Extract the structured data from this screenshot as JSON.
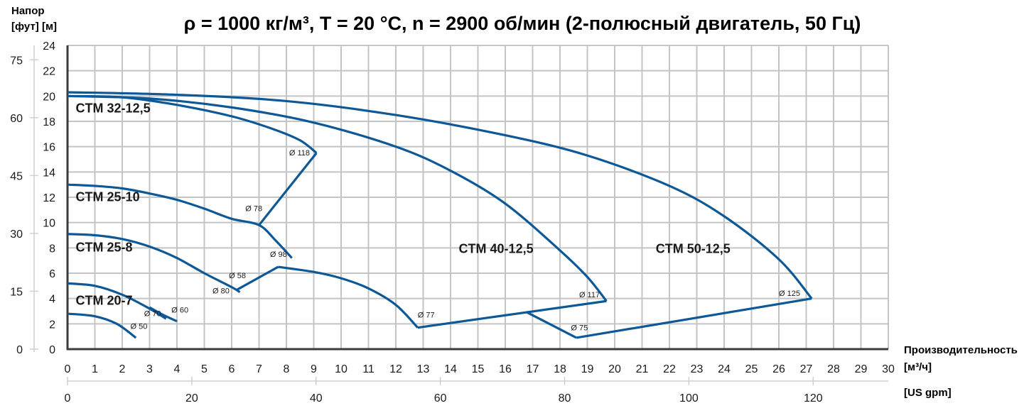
{
  "chart_data": {
    "type": "line",
    "title": "ρ = 1000 кг/м³, T = 20 °C, n = 2900 об/мин (2-полюсный двигатель, 50 Гц)",
    "ylabel": "Напор",
    "ylabel_units": "[фут] [м]",
    "xlabel": "Производительность",
    "xlabel_units": "[м³/ч]",
    "x2label_units": "[US gpm]",
    "xlim": [
      0,
      30
    ],
    "ylim": [
      0,
      24
    ],
    "grid": true,
    "x_ticks": [
      0,
      1,
      2,
      3,
      4,
      5,
      6,
      7,
      8,
      9,
      10,
      11,
      12,
      13,
      14,
      15,
      16,
      17,
      18,
      19,
      20,
      21,
      22,
      23,
      24,
      25,
      26,
      27,
      28,
      29,
      30
    ],
    "y_ticks_m": [
      0,
      2,
      4,
      6,
      8,
      10,
      12,
      14,
      16,
      18,
      20,
      22,
      24
    ],
    "y_ticks_ft": [
      0,
      15,
      30,
      45,
      60,
      75
    ],
    "x2_ticks_gpm": [
      0,
      20,
      40,
      60,
      80,
      100,
      120
    ],
    "series": [
      {
        "model": "CTM 20-7",
        "diameter": "Ø 70",
        "points": [
          [
            0,
            5.2
          ],
          [
            1,
            5.0
          ],
          [
            2,
            4.3
          ],
          [
            3,
            3.2
          ],
          [
            3.6,
            2.4
          ]
        ]
      },
      {
        "model": "CTM 20-7",
        "diameter": "Ø 50",
        "points": [
          [
            0,
            2.8
          ],
          [
            1,
            2.6
          ],
          [
            1.8,
            2.0
          ],
          [
            2.5,
            0.9
          ]
        ]
      },
      {
        "model": "CTM 25-8",
        "diameter": "Ø 80",
        "points": [
          [
            0,
            9.1
          ],
          [
            1,
            9.0
          ],
          [
            2,
            8.7
          ],
          [
            3,
            8.1
          ],
          [
            4,
            7.2
          ],
          [
            5,
            6.0
          ],
          [
            6,
            4.9
          ],
          [
            6.3,
            4.5
          ]
        ]
      },
      {
        "model": "CTM 25-8",
        "diameter": "Ø 60",
        "points": [
          [
            3.0,
            3.3
          ],
          [
            3.5,
            2.7
          ],
          [
            4.0,
            2.2
          ]
        ]
      },
      {
        "model": "CTM 25-10",
        "diameter": "Ø 98",
        "points": [
          [
            0,
            13.0
          ],
          [
            1,
            12.9
          ],
          [
            2,
            12.7
          ],
          [
            3,
            12.3
          ],
          [
            4,
            11.8
          ],
          [
            5,
            11.1
          ],
          [
            6,
            10.3
          ],
          [
            7,
            9.8
          ],
          [
            7.6,
            8.6
          ],
          [
            8.2,
            7.2
          ]
        ]
      },
      {
        "model": "CTM 25-10",
        "diameter": "Ø 58",
        "points": [
          [
            6.2,
            4.7
          ],
          [
            7.7,
            6.5
          ]
        ]
      },
      {
        "model": "CTM 32-12,5",
        "diameter": "Ø 118",
        "points": [
          [
            0,
            20.0
          ],
          [
            2,
            19.9
          ],
          [
            4,
            19.3
          ],
          [
            6,
            18.4
          ],
          [
            7.5,
            17.4
          ],
          [
            8.5,
            16.5
          ],
          [
            9.1,
            15.5
          ]
        ]
      },
      {
        "model": "CTM 32-12,5",
        "diameter": "Ø 78",
        "points": [
          [
            7.0,
            9.8
          ],
          [
            9.1,
            15.5
          ]
        ]
      },
      {
        "model": "CTM 40-12,5",
        "diameter": "Ø 117",
        "points": [
          [
            0,
            20.0
          ],
          [
            3,
            19.8
          ],
          [
            6,
            19.1
          ],
          [
            9,
            17.9
          ],
          [
            12,
            16.0
          ],
          [
            14,
            14.1
          ],
          [
            16,
            11.5
          ],
          [
            18,
            7.8
          ],
          [
            19,
            5.7
          ],
          [
            19.7,
            3.8
          ]
        ]
      },
      {
        "model": "CTM 40-12,5",
        "diameter": "Ø 77",
        "points": [
          [
            7.7,
            6.5
          ],
          [
            9,
            6.1
          ],
          [
            10,
            5.6
          ],
          [
            11,
            4.8
          ],
          [
            12,
            3.5
          ],
          [
            12.8,
            1.7
          ]
        ]
      },
      {
        "model": "CTM 40-12,5",
        "diameter": "",
        "points": [
          [
            12.8,
            1.7
          ],
          [
            19.7,
            3.8
          ]
        ]
      },
      {
        "model": "CTM 50-12,5",
        "diameter": "Ø 125",
        "points": [
          [
            0,
            20.3
          ],
          [
            4,
            20.1
          ],
          [
            8,
            19.6
          ],
          [
            12,
            18.5
          ],
          [
            16,
            16.9
          ],
          [
            19,
            15.3
          ],
          [
            22,
            12.9
          ],
          [
            24,
            10.5
          ],
          [
            26,
            7.1
          ],
          [
            27.2,
            4.0
          ]
        ]
      },
      {
        "model": "CTM 50-12,5",
        "diameter": "Ø 75",
        "points": [
          [
            16.8,
            2.9
          ],
          [
            18.6,
            0.9
          ]
        ]
      },
      {
        "model": "CTM 50-12,5",
        "diameter": "",
        "points": [
          [
            18.6,
            0.9
          ],
          [
            27.2,
            4.0
          ]
        ]
      }
    ],
    "model_labels": [
      {
        "text": "CTM 32-12,5",
        "x": 0.3,
        "y": 18.7
      },
      {
        "text": "CTM 25-10",
        "x": 0.3,
        "y": 11.7
      },
      {
        "text": "CTM 25-8",
        "x": 0.3,
        "y": 7.7
      },
      {
        "text": "CTM 20-7",
        "x": 0.3,
        "y": 3.5
      },
      {
        "text": "CTM 40-12,5",
        "x": 14.3,
        "y": 7.6
      },
      {
        "text": "CTM 50-12,5",
        "x": 21.5,
        "y": 7.6
      }
    ],
    "diameter_labels": [
      {
        "text": "Ø 118",
        "x": 8.1,
        "y": 15.3
      },
      {
        "text": "Ø 78",
        "x": 6.5,
        "y": 10.9
      },
      {
        "text": "Ø 98",
        "x": 7.4,
        "y": 7.3
      },
      {
        "text": "Ø 58",
        "x": 5.9,
        "y": 5.6
      },
      {
        "text": "Ø 80",
        "x": 5.3,
        "y": 4.4
      },
      {
        "text": "Ø 70",
        "x": 2.8,
        "y": 2.6
      },
      {
        "text": "Ø 60",
        "x": 3.8,
        "y": 2.9
      },
      {
        "text": "Ø 50",
        "x": 2.3,
        "y": 1.6
      },
      {
        "text": "Ø 77",
        "x": 12.8,
        "y": 2.5
      },
      {
        "text": "Ø 117",
        "x": 18.7,
        "y": 4.1
      },
      {
        "text": "Ø 75",
        "x": 18.4,
        "y": 1.5
      },
      {
        "text": "Ø 125",
        "x": 26.0,
        "y": 4.2
      }
    ]
  },
  "colors": {
    "curve": "#0d5896",
    "grid": "#c4c4c4",
    "axis": "#3a3a3a",
    "secondary_axis": "#cfcfcf",
    "text": "#1a1a1a"
  }
}
